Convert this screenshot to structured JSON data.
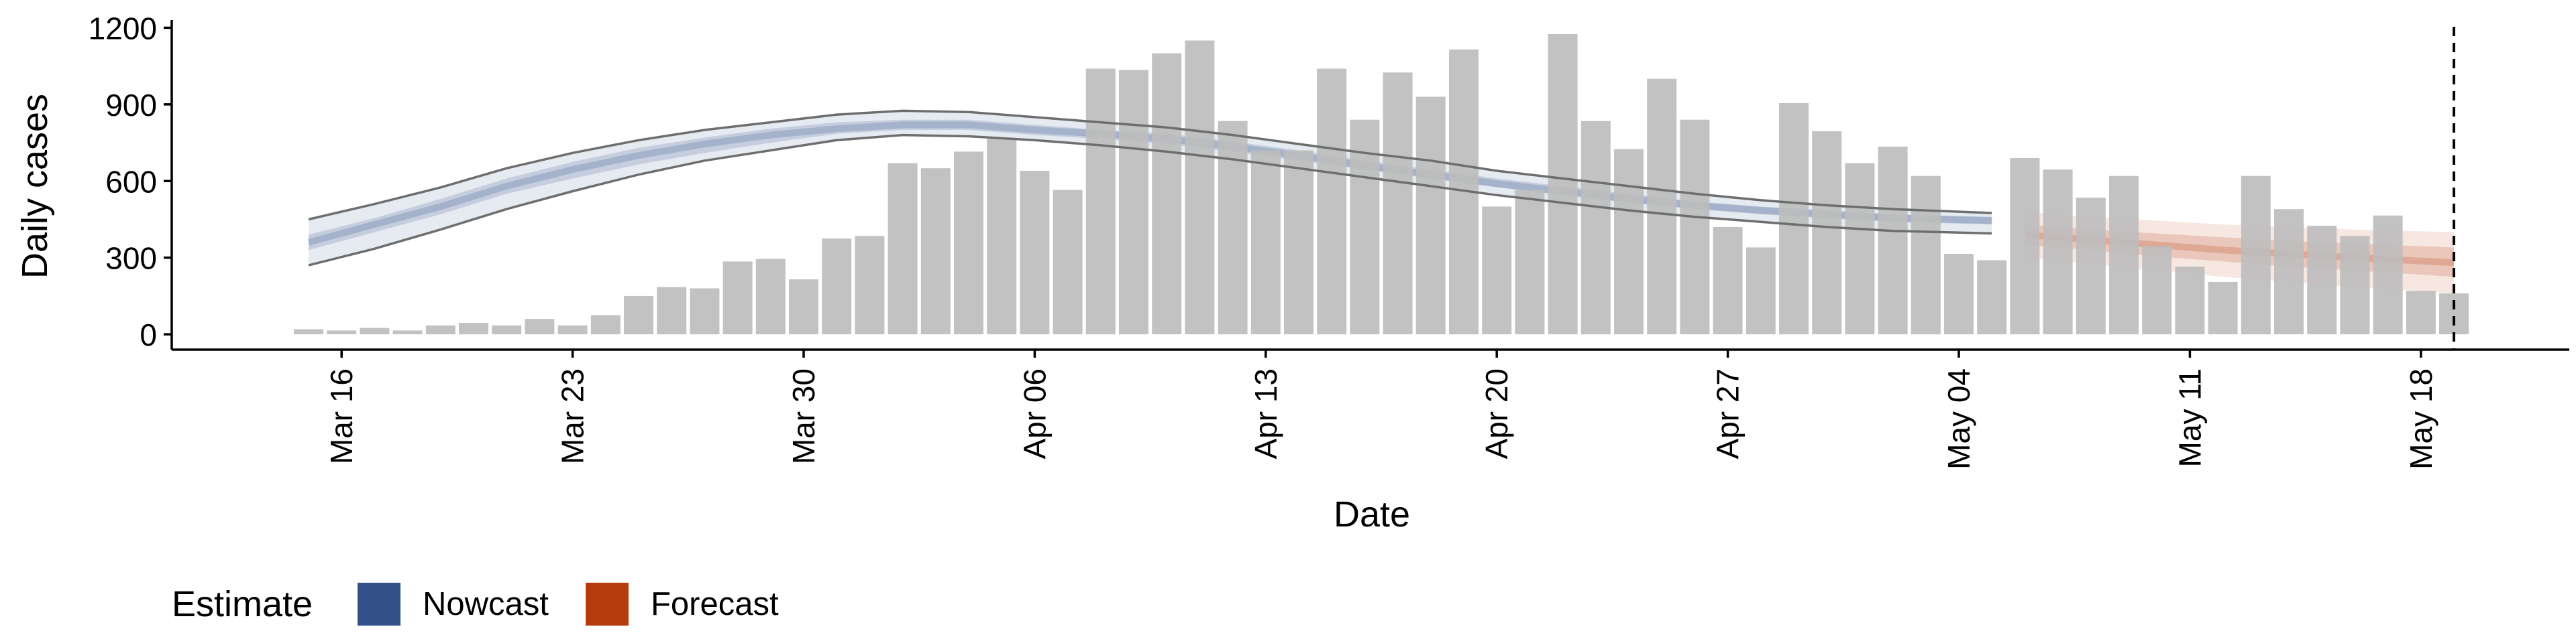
{
  "chart_data": {
    "type": "bar",
    "xlabel": "Date",
    "ylabel": "Daily cases",
    "ylim": [
      -60,
      1230
    ],
    "yticks": [
      0,
      300,
      600,
      900,
      1200
    ],
    "xticks": [
      {
        "date": "2020-03-16",
        "label": "Mar 16"
      },
      {
        "date": "2020-03-23",
        "label": "Mar 23"
      },
      {
        "date": "2020-03-30",
        "label": "Mar 30"
      },
      {
        "date": "2020-04-06",
        "label": "Apr 06"
      },
      {
        "date": "2020-04-13",
        "label": "Apr 13"
      },
      {
        "date": "2020-04-20",
        "label": "Apr 20"
      },
      {
        "date": "2020-04-27",
        "label": "Apr 27"
      },
      {
        "date": "2020-05-04",
        "label": "May 04"
      },
      {
        "date": "2020-05-11",
        "label": "May 11"
      },
      {
        "date": "2020-05-18",
        "label": "May 18"
      }
    ],
    "x": [
      "2020-03-15",
      "2020-03-16",
      "2020-03-17",
      "2020-03-18",
      "2020-03-19",
      "2020-03-20",
      "2020-03-21",
      "2020-03-22",
      "2020-03-23",
      "2020-03-24",
      "2020-03-25",
      "2020-03-26",
      "2020-03-27",
      "2020-03-28",
      "2020-03-29",
      "2020-03-30",
      "2020-03-31",
      "2020-04-01",
      "2020-04-02",
      "2020-04-03",
      "2020-04-04",
      "2020-04-05",
      "2020-04-06",
      "2020-04-07",
      "2020-04-08",
      "2020-04-09",
      "2020-04-10",
      "2020-04-11",
      "2020-04-12",
      "2020-04-13",
      "2020-04-14",
      "2020-04-15",
      "2020-04-16",
      "2020-04-17",
      "2020-04-18",
      "2020-04-19",
      "2020-04-20",
      "2020-04-21",
      "2020-04-22",
      "2020-04-23",
      "2020-04-24",
      "2020-04-25",
      "2020-04-26",
      "2020-04-27",
      "2020-04-28",
      "2020-04-29",
      "2020-04-30",
      "2020-05-01",
      "2020-05-02",
      "2020-05-03",
      "2020-05-04",
      "2020-05-05",
      "2020-05-06",
      "2020-05-07",
      "2020-05-08",
      "2020-05-09",
      "2020-05-10",
      "2020-05-11",
      "2020-05-12",
      "2020-05-13",
      "2020-05-14",
      "2020-05-15",
      "2020-05-16",
      "2020-05-17",
      "2020-05-18",
      "2020-05-19"
    ],
    "daily_cases": [
      20,
      15,
      25,
      15,
      35,
      45,
      35,
      60,
      35,
      75,
      150,
      185,
      180,
      285,
      295,
      215,
      375,
      385,
      670,
      650,
      715,
      765,
      640,
      565,
      1040,
      1035,
      1100,
      1150,
      835,
      720,
      720,
      1040,
      840,
      1025,
      930,
      1115,
      500,
      565,
      1175,
      835,
      725,
      1000,
      840,
      420,
      340,
      905,
      795,
      670,
      735,
      620,
      315,
      290,
      690,
      645,
      535,
      620,
      345,
      265,
      205,
      620,
      490,
      425,
      385,
      465,
      170,
      160
    ],
    "nowcast": {
      "x": [
        "2020-03-15",
        "2020-03-17",
        "2020-03-19",
        "2020-03-21",
        "2020-03-23",
        "2020-03-25",
        "2020-03-27",
        "2020-03-29",
        "2020-03-31",
        "2020-04-02",
        "2020-04-04",
        "2020-04-06",
        "2020-04-08",
        "2020-04-10",
        "2020-04-12",
        "2020-04-14",
        "2020-04-16",
        "2020-04-18",
        "2020-04-20",
        "2020-04-22",
        "2020-04-24",
        "2020-04-26",
        "2020-04-28",
        "2020-04-30",
        "2020-05-02",
        "2020-05-05"
      ],
      "median": [
        360,
        430,
        500,
        580,
        645,
        700,
        745,
        780,
        805,
        820,
        820,
        800,
        785,
        765,
        735,
        700,
        660,
        625,
        590,
        560,
        530,
        505,
        485,
        470,
        455,
        445
      ],
      "inner": [
        [
          330,
          390
        ],
        [
          400,
          455
        ],
        [
          470,
          530
        ],
        [
          550,
          610
        ],
        [
          610,
          675
        ],
        [
          665,
          730
        ],
        [
          710,
          770
        ],
        [
          750,
          805
        ],
        [
          785,
          830
        ],
        [
          800,
          840
        ],
        [
          800,
          840
        ],
        [
          780,
          820
        ],
        [
          765,
          800
        ],
        [
          745,
          785
        ],
        [
          715,
          755
        ],
        [
          680,
          720
        ],
        [
          645,
          680
        ],
        [
          610,
          645
        ],
        [
          575,
          610
        ],
        [
          545,
          580
        ],
        [
          515,
          550
        ],
        [
          490,
          520
        ],
        [
          470,
          500
        ],
        [
          455,
          485
        ],
        [
          440,
          470
        ],
        [
          430,
          460
        ]
      ],
      "outer": [
        [
          270,
          450
        ],
        [
          335,
          510
        ],
        [
          410,
          575
        ],
        [
          490,
          650
        ],
        [
          560,
          710
        ],
        [
          625,
          760
        ],
        [
          680,
          800
        ],
        [
          720,
          830
        ],
        [
          760,
          860
        ],
        [
          780,
          875
        ],
        [
          775,
          870
        ],
        [
          760,
          850
        ],
        [
          740,
          830
        ],
        [
          715,
          810
        ],
        [
          685,
          780
        ],
        [
          650,
          745
        ],
        [
          615,
          710
        ],
        [
          580,
          680
        ],
        [
          545,
          640
        ],
        [
          515,
          610
        ],
        [
          485,
          580
        ],
        [
          460,
          550
        ],
        [
          440,
          525
        ],
        [
          420,
          505
        ],
        [
          405,
          490
        ],
        [
          395,
          475
        ]
      ],
      "color": "#33508a"
    },
    "forecast": {
      "x": [
        "2020-05-06",
        "2020-05-08",
        "2020-05-10",
        "2020-05-12",
        "2020-05-14",
        "2020-05-16",
        "2020-05-19"
      ],
      "median": [
        390,
        370,
        350,
        330,
        315,
        300,
        280
      ],
      "inner": [
        [
          350,
          430
        ],
        [
          330,
          410
        ],
        [
          305,
          395
        ],
        [
          285,
          380
        ],
        [
          265,
          365
        ],
        [
          250,
          355
        ],
        [
          225,
          340
        ]
      ],
      "outer": [
        [
          300,
          480
        ],
        [
          275,
          460
        ],
        [
          250,
          445
        ],
        [
          225,
          430
        ],
        [
          205,
          420
        ],
        [
          185,
          410
        ],
        [
          160,
          400
        ]
      ],
      "color": "#b53a0c"
    },
    "vline_date": "2020-05-19",
    "legend": {
      "title": "Estimate",
      "position": "bottom-left",
      "items": [
        {
          "label": "Nowcast",
          "color": "#33508a"
        },
        {
          "label": "Forecast",
          "color": "#b53a0c"
        }
      ]
    },
    "bar_color": "#bdbdbd",
    "grid": false
  }
}
